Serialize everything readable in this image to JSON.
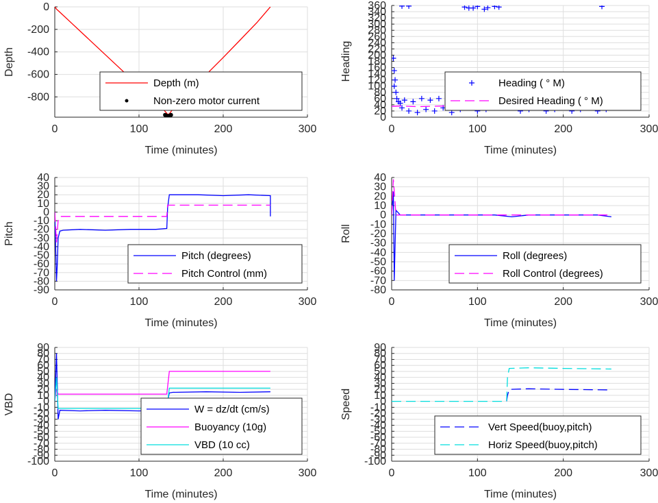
{
  "chart_data": [
    {
      "id": "depth",
      "type": "line",
      "xlabel": "Time (minutes)",
      "ylabel": "Depth",
      "xlim": [
        0,
        300
      ],
      "ylim": [
        -980,
        0
      ],
      "xticks": [
        0,
        100,
        200,
        300
      ],
      "yticks": [
        0,
        -200,
        -400,
        -600,
        -800
      ],
      "grid": true,
      "legend": {
        "placement": "bottom-right"
      },
      "series": [
        {
          "name": "Depth (m)",
          "style": "line",
          "color": "#ff0000",
          "x": [
            0,
            2,
            5,
            20,
            40,
            60,
            80,
            100,
            120,
            130,
            134,
            136,
            140,
            160,
            180,
            200,
            220,
            240,
            256
          ],
          "y": [
            0,
            -20,
            -40,
            -145,
            -285,
            -425,
            -565,
            -705,
            -845,
            -920,
            -955,
            -950,
            -910,
            -755,
            -600,
            -450,
            -295,
            -140,
            0
          ]
        },
        {
          "name": "Non-zero motor current",
          "style": "dots",
          "color": "#000000",
          "x": [
            131,
            132,
            133,
            134,
            135,
            136,
            137,
            138
          ],
          "y": [
            -960,
            -965,
            -968,
            -970,
            -970,
            -968,
            -965,
            -960
          ]
        }
      ]
    },
    {
      "id": "heading",
      "type": "scatter",
      "xlabel": "Time (minutes)",
      "ylabel": "Heading",
      "xlim": [
        0,
        300
      ],
      "ylim": [
        0,
        360
      ],
      "xticks": [
        0,
        100,
        200,
        300
      ],
      "yticks": [
        0,
        20,
        40,
        60,
        80,
        100,
        120,
        140,
        160,
        180,
        200,
        220,
        240,
        260,
        280,
        300,
        320,
        340,
        360
      ],
      "grid": true,
      "legend": {
        "placement": "center-right"
      },
      "series": [
        {
          "name": "Heading ( ° M)",
          "style": "plus",
          "color": "#0000ff",
          "x": [
            2,
            3,
            3,
            4,
            5,
            6,
            8,
            10,
            12,
            15,
            20,
            25,
            30,
            35,
            40,
            45,
            50,
            55,
            60,
            65,
            70,
            75,
            80,
            85,
            90,
            95,
            100,
            105,
            110,
            115,
            120,
            125,
            130,
            135,
            140,
            145,
            150,
            155,
            160,
            165,
            170,
            175,
            180,
            185,
            190,
            195,
            200,
            205,
            210,
            215,
            220,
            225,
            230,
            235,
            240,
            245,
            250,
            255,
            12,
            20,
            85,
            90,
            95,
            100,
            108,
            112,
            120,
            125,
            245,
            160,
            165,
            180,
            200,
            225,
            250
          ],
          "y": [
            190,
            150,
            100,
            120,
            80,
            60,
            50,
            45,
            30,
            55,
            20,
            50,
            15,
            60,
            25,
            55,
            20,
            60,
            30,
            55,
            15,
            50,
            25,
            60,
            30,
            55,
            20,
            50,
            25,
            55,
            40,
            110,
            125,
            60,
            30,
            55,
            20,
            50,
            25,
            60,
            30,
            55,
            20,
            50,
            25,
            60,
            30,
            55,
            20,
            50,
            25,
            60,
            30,
            55,
            20,
            50,
            25,
            70,
            358,
            358,
            355,
            352,
            352,
            357,
            348,
            353,
            357,
            355,
            357,
            70,
            65,
            60,
            75,
            65,
            80
          ]
        },
        {
          "name": "Desired Heading ( ° M)",
          "style": "dashed",
          "color": "#ff00ff",
          "x": [
            0,
            10,
            30,
            60,
            100,
            135,
            140,
            180,
            220,
            256
          ],
          "y": [
            35,
            36,
            34,
            36,
            35,
            34,
            35,
            36,
            34,
            35
          ]
        }
      ]
    },
    {
      "id": "pitch",
      "type": "line",
      "xlabel": "Time (minutes)",
      "ylabel": "Pitch",
      "xlim": [
        0,
        300
      ],
      "ylim": [
        -90,
        40
      ],
      "xticks": [
        0,
        100,
        200,
        300
      ],
      "yticks": [
        40,
        30,
        20,
        10,
        0,
        -10,
        -20,
        -30,
        -40,
        -50,
        -60,
        -70,
        -80,
        -90
      ],
      "grid": true,
      "legend": {
        "placement": "bottom-right"
      },
      "series": [
        {
          "name": "Pitch (degrees)",
          "style": "line",
          "color": "#0000ff",
          "x": [
            0,
            2,
            3,
            4,
            6,
            10,
            30,
            60,
            90,
            120,
            133,
            134,
            136,
            140,
            170,
            200,
            230,
            256,
            256
          ],
          "y": [
            0,
            -80,
            -60,
            -30,
            -22,
            -21,
            -20,
            -21,
            -20,
            -20,
            -19,
            5,
            20,
            20,
            20,
            19,
            20,
            19,
            -5
          ]
        },
        {
          "name": "Pitch Control (mm)",
          "style": "dashed",
          "color": "#ff00ff",
          "x": [
            0,
            2,
            4,
            6,
            133,
            134,
            256
          ],
          "y": [
            0,
            -35,
            -10,
            -5,
            -5,
            8,
            8
          ]
        }
      ]
    },
    {
      "id": "roll",
      "type": "line",
      "xlabel": "Time (minutes)",
      "ylabel": "Roll",
      "xlim": [
        0,
        300
      ],
      "ylim": [
        -80,
        40
      ],
      "xticks": [
        0,
        100,
        200,
        300
      ],
      "yticks": [
        40,
        30,
        20,
        10,
        0,
        -10,
        -20,
        -30,
        -40,
        -50,
        -60,
        -70,
        -80
      ],
      "grid": true,
      "legend": {
        "placement": "bottom-right"
      },
      "series": [
        {
          "name": "Roll (degrees)",
          "style": "line",
          "color": "#0000ff",
          "x": [
            0,
            2,
            3,
            5,
            10,
            20,
            40,
            60,
            80,
            100,
            120,
            140,
            160,
            180,
            200,
            220,
            240,
            256
          ],
          "y": [
            0,
            25,
            -70,
            5,
            0,
            0,
            0,
            0,
            0,
            0,
            0,
            -2,
            0,
            0,
            0,
            0,
            0,
            -2
          ]
        },
        {
          "name": "Roll Control (degrees)",
          "style": "dashed",
          "color": "#ff00ff",
          "x": [
            0,
            2,
            5,
            256
          ],
          "y": [
            0,
            38,
            0,
            0
          ]
        }
      ]
    },
    {
      "id": "vbd",
      "type": "line",
      "xlabel": "Time (minutes)",
      "ylabel": "VBD",
      "xlim": [
        0,
        300
      ],
      "ylim": [
        -100,
        90
      ],
      "xticks": [
        0,
        100,
        200,
        300
      ],
      "yticks": [
        90,
        80,
        70,
        60,
        50,
        40,
        30,
        20,
        10,
        0,
        -10,
        -20,
        -30,
        -40,
        -50,
        -60,
        -70,
        -80,
        -90,
        -100
      ],
      "grid": true,
      "legend": {
        "placement": "bottom-right"
      },
      "series": [
        {
          "name": "W = dz/dt (cm/s)",
          "style": "line",
          "color": "#0000ff",
          "x": [
            0,
            2,
            4,
            6,
            30,
            60,
            100,
            132,
            134,
            136,
            140,
            180,
            220,
            256
          ],
          "y": [
            0,
            80,
            -30,
            -15,
            -16,
            -15,
            -16,
            -15,
            0,
            14,
            15,
            16,
            15,
            16
          ]
        },
        {
          "name": "Buoyancy (10g)",
          "style": "line",
          "color": "#ff00ff",
          "x": [
            0,
            2,
            4,
            133,
            136,
            256
          ],
          "y": [
            0,
            20,
            12,
            12,
            50,
            50
          ]
        },
        {
          "name": "VBD (10 cc)",
          "style": "line",
          "color": "#00dddd",
          "x": [
            0,
            2,
            4,
            133,
            136,
            256
          ],
          "y": [
            0,
            40,
            -12,
            -12,
            22,
            22
          ]
        }
      ]
    },
    {
      "id": "speed",
      "type": "line",
      "xlabel": "Time (minutes)",
      "ylabel": "Speed",
      "xlim": [
        0,
        300
      ],
      "ylim": [
        -100,
        90
      ],
      "xticks": [
        0,
        100,
        200,
        300
      ],
      "yticks": [
        90,
        80,
        70,
        60,
        50,
        40,
        30,
        20,
        10,
        0,
        -10,
        -20,
        -30,
        -40,
        -50,
        -60,
        -70,
        -80,
        -90,
        -100
      ],
      "grid": true,
      "legend": {
        "placement": "bottom-right"
      },
      "series": [
        {
          "name": "Vert Speed(buoy,pitch)",
          "style": "dashed",
          "color": "#0000ff",
          "x": [
            134,
            135,
            137,
            160,
            200,
            256
          ],
          "y": [
            0,
            10,
            20,
            21,
            20,
            19
          ]
        },
        {
          "name": "Horiz Speed(buoy,pitch)",
          "style": "dashed",
          "color": "#00dddd",
          "x": [
            0,
            134,
            135,
            137,
            160,
            200,
            256
          ],
          "y": [
            0,
            0,
            40,
            55,
            56,
            55,
            54
          ]
        }
      ]
    }
  ]
}
